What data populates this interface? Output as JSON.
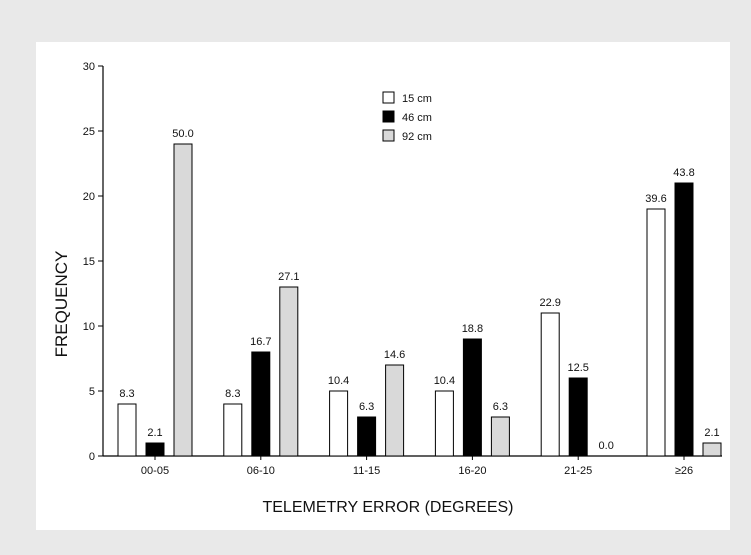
{
  "chart_data": {
    "type": "bar",
    "xlabel": "TELEMETRY ERROR (DEGREES)",
    "ylabel": "FREQUENCY",
    "ylim": [
      0,
      30
    ],
    "yticks": [
      "0",
      "5",
      "10",
      "15",
      "20",
      "25",
      "30"
    ],
    "grid": false,
    "legend_position": "top-center",
    "categories": [
      "00-05",
      "06-10",
      "11-15",
      "16-20",
      "21-25",
      "≥26"
    ],
    "series": [
      {
        "name": "15 cm",
        "color": "#ffffff",
        "values": [
          4,
          4,
          5,
          5,
          11,
          19
        ],
        "labels": [
          "8.3",
          "8.3",
          "10.4",
          "10.4",
          "22.9",
          "39.6"
        ]
      },
      {
        "name": "46 cm",
        "color": "#000000",
        "values": [
          1,
          8,
          3,
          9,
          6,
          21
        ],
        "labels": [
          "2.1",
          "16.7",
          "6.3",
          "18.8",
          "12.5",
          "43.8"
        ]
      },
      {
        "name": "92 cm",
        "color": "#d9d9d9",
        "values": [
          24,
          13,
          7,
          3,
          0,
          1
        ],
        "labels": [
          "50.0",
          "27.1",
          "14.6",
          "6.3",
          "0.0",
          "2.1"
        ]
      }
    ]
  }
}
